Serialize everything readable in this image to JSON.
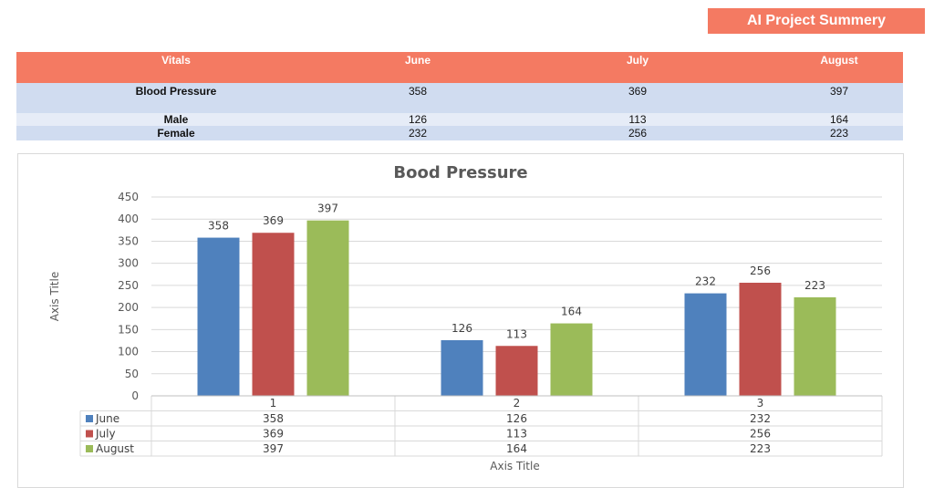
{
  "header": {
    "badge_label": "AI Project Summery"
  },
  "vitals_table": {
    "columns": [
      "Vitals",
      "June",
      "July",
      "August"
    ],
    "rows": [
      {
        "label": "Blood Pressure",
        "values": [
          "358",
          "369",
          "397"
        ]
      },
      {
        "label": "Male",
        "values": [
          "126",
          "113",
          "164"
        ]
      },
      {
        "label": "Female",
        "values": [
          "232",
          "256",
          "223"
        ]
      }
    ]
  },
  "colors": {
    "accent": "#f47a62",
    "june": "#4f81bd",
    "july": "#c0504d",
    "august": "#9bbb59"
  },
  "chart_data": {
    "type": "bar",
    "title": "Bood Pressure",
    "xlabel": "Axis Title",
    "ylabel": "Axis Title",
    "categories": [
      "1",
      "2",
      "3"
    ],
    "series": [
      {
        "name": "June",
        "values": [
          358,
          126,
          232
        ]
      },
      {
        "name": "July",
        "values": [
          369,
          113,
          256
        ]
      },
      {
        "name": "August",
        "values": [
          397,
          164,
          223
        ]
      }
    ],
    "ylim": [
      0,
      450
    ],
    "yticks": [
      0,
      50,
      100,
      150,
      200,
      250,
      300,
      350,
      400,
      450
    ],
    "grid": true,
    "legend": "data-table-below"
  }
}
